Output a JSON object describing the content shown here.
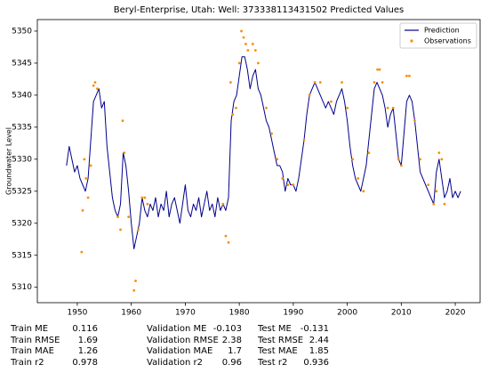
{
  "chart_data": {
    "type": "line",
    "title": "Beryl-Enterprise, Utah: Well: 373338113431502 Predicted Values",
    "ylabel": "Groundwater Level",
    "xlim": [
      1942.6,
      2024.6
    ],
    "ylim": [
      5307.6,
      5351.8
    ],
    "xticks": [
      1950,
      1960,
      1970,
      1980,
      1990,
      2000,
      2010,
      2020
    ],
    "yticks": [
      5310,
      5315,
      5320,
      5325,
      5330,
      5335,
      5340,
      5345,
      5350
    ],
    "grid": false,
    "legend": "upper right",
    "series": [
      {
        "name": "Prediction",
        "type": "line",
        "color": "#00008b",
        "x": [
          1948,
          1948.5,
          1949,
          1949.5,
          1950,
          1950.5,
          1951,
          1951.5,
          1952,
          1952.5,
          1953,
          1953.5,
          1954,
          1954.5,
          1955,
          1955.5,
          1956,
          1956.5,
          1957,
          1957.5,
          1958,
          1958.5,
          1959,
          1959.5,
          1960,
          1960.5,
          1961,
          1961.5,
          1962,
          1962.5,
          1963,
          1963.5,
          1964,
          1964.5,
          1965,
          1965.5,
          1966,
          1966.5,
          1967,
          1967.5,
          1968,
          1968.5,
          1969,
          1969.5,
          1970,
          1970.5,
          1971,
          1971.5,
          1972,
          1972.5,
          1973,
          1973.5,
          1974,
          1974.5,
          1975,
          1975.5,
          1976,
          1976.5,
          1977,
          1977.5,
          1978,
          1978.5,
          1979,
          1979.5,
          1980,
          1980.5,
          1981,
          1981.5,
          1982,
          1982.5,
          1983,
          1983.5,
          1984,
          1984.5,
          1985,
          1985.5,
          1986,
          1986.5,
          1987,
          1987.5,
          1988,
          1988.5,
          1989,
          1989.5,
          1990,
          1990.5,
          1991,
          1991.5,
          1992,
          1992.5,
          1993,
          1993.5,
          1994,
          1994.5,
          1995,
          1995.5,
          1996,
          1996.5,
          1997,
          1997.5,
          1998,
          1998.5,
          1999,
          1999.5,
          2000,
          2000.5,
          2001,
          2001.5,
          2002,
          2002.5,
          2003,
          2003.5,
          2004,
          2004.5,
          2005,
          2005.5,
          2006,
          2006.5,
          2007,
          2007.5,
          2008,
          2008.5,
          2009,
          2009.5,
          2010,
          2010.5,
          2011,
          2011.5,
          2012,
          2012.5,
          2013,
          2013.5,
          2014,
          2014.5,
          2015,
          2015.5,
          2016,
          2016.5,
          2017,
          2017.5,
          2018,
          2018.5,
          2019,
          2019.5,
          2020,
          2020.5,
          2021
        ],
        "values": [
          5329,
          5332,
          5330,
          5328,
          5329,
          5327,
          5326,
          5325,
          5327,
          5333,
          5339,
          5340,
          5341,
          5338,
          5339,
          5332,
          5328,
          5324,
          5322,
          5321,
          5323,
          5331,
          5329,
          5325,
          5320,
          5316,
          5318,
          5320,
          5324,
          5322,
          5321,
          5323,
          5322,
          5324,
          5321,
          5323,
          5322,
          5325,
          5321,
          5323,
          5324,
          5322,
          5320,
          5323,
          5326,
          5322,
          5321,
          5323,
          5322,
          5324,
          5321,
          5323,
          5325,
          5322,
          5323,
          5321,
          5324,
          5322,
          5323,
          5322,
          5324,
          5336,
          5339,
          5340,
          5343,
          5346,
          5346,
          5344,
          5341,
          5343,
          5344,
          5341,
          5340,
          5338,
          5336,
          5335,
          5333,
          5331,
          5329,
          5329,
          5328,
          5325,
          5327,
          5326,
          5326,
          5325,
          5327,
          5330,
          5333,
          5337,
          5340,
          5341,
          5342,
          5341,
          5340,
          5339,
          5338,
          5339,
          5338,
          5337,
          5339,
          5340,
          5341,
          5339,
          5336,
          5332,
          5329,
          5327,
          5326,
          5325,
          5327,
          5329,
          5333,
          5337,
          5341,
          5342,
          5341,
          5340,
          5338,
          5335,
          5337,
          5338,
          5334,
          5330,
          5329,
          5334,
          5339,
          5340,
          5339,
          5336,
          5332,
          5328,
          5327,
          5326,
          5325,
          5324,
          5323,
          5328,
          5330,
          5327,
          5324,
          5325,
          5327,
          5324,
          5325,
          5324,
          5325
        ]
      },
      {
        "name": "Observations",
        "type": "scatter",
        "color": "#ff8c00",
        "x": [
          1950.8,
          1951,
          1951.3,
          1951.6,
          1952,
          1952.5,
          1953,
          1953.3,
          1953.7,
          1957.5,
          1958,
          1958.4,
          1958.7,
          1959.5,
          1960.5,
          1960.8,
          1961.3,
          1962,
          1962.5,
          1963,
          1977,
          1977.5,
          1978,
          1978.4,
          1978.8,
          1979.4,
          1980,
          1980.4,
          1980.8,
          1981.2,
          1981.6,
          1982.5,
          1983,
          1983.5,
          1985,
          1986,
          1987,
          1988,
          1989,
          1990,
          1992,
          1993,
          1994,
          1995,
          1997,
          1999,
          2000,
          2001,
          2002,
          2003,
          2004,
          2005,
          2005.6,
          2006,
          2006.5,
          2007.5,
          2008.5,
          2009.5,
          2010,
          2011,
          2011.5,
          2012.5,
          2013.5,
          2015,
          2016,
          2016.5,
          2017,
          2017.5,
          2018
        ],
        "values": [
          5315.5,
          5322,
          5330,
          5327,
          5324,
          5329,
          5341.5,
          5342,
          5341,
          5321,
          5319,
          5336,
          5331,
          5321,
          5309.5,
          5311,
          5319,
          5324,
          5324,
          5323,
          5323,
          5318,
          5317,
          5342,
          5337,
          5338,
          5345,
          5350,
          5349,
          5348,
          5347,
          5348,
          5347,
          5345,
          5338,
          5334,
          5330,
          5327,
          5326,
          5326,
          5333,
          5340,
          5342,
          5342,
          5339,
          5342,
          5338,
          5330,
          5327,
          5325,
          5331,
          5342,
          5344,
          5344,
          5342,
          5338,
          5338,
          5330,
          5329,
          5343,
          5343,
          5336,
          5330,
          5326,
          5323,
          5325,
          5331,
          5330,
          5323
        ]
      }
    ],
    "stats": [
      [
        {
          "label": "Train ME",
          "value": 0.116
        },
        {
          "label": "Train RMSE",
          "value": 1.69
        },
        {
          "label": "Train MAE",
          "value": 1.26
        },
        {
          "label": "Train r2",
          "value": 0.978
        }
      ],
      [
        {
          "label": "Validation ME",
          "value": -0.103
        },
        {
          "label": "Validation RMSE",
          "value": 2.38
        },
        {
          "label": "Validation MAE",
          "value": 1.7
        },
        {
          "label": "Validation r2",
          "value": 0.96
        }
      ],
      [
        {
          "label": "Test ME",
          "value": -0.131
        },
        {
          "label": "Test RMSE",
          "value": 2.44
        },
        {
          "label": "Test MAE",
          "value": 1.85
        },
        {
          "label": "Test r2",
          "value": 0.936
        }
      ]
    ]
  }
}
